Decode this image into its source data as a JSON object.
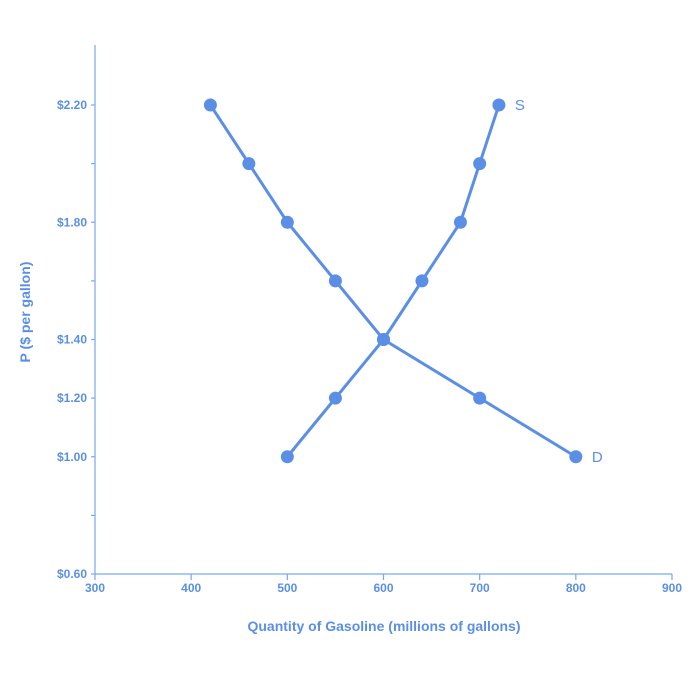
{
  "chart_data": {
    "type": "line",
    "xlabel": "Quantity of Gasoline (millions of gallons)",
    "ylabel": "P ($ per gallon)",
    "xlim": [
      300,
      900
    ],
    "ylim": [
      0.6,
      2.4
    ],
    "x_ticks": [
      300,
      400,
      500,
      600,
      700,
      800,
      900
    ],
    "x_tick_labels": [
      "300",
      "400",
      "500",
      "600",
      "700",
      "800",
      "900"
    ],
    "y_ticks": [
      0.6,
      0.8,
      1.0,
      1.2,
      1.4,
      1.6,
      1.8,
      2.0,
      2.2
    ],
    "y_tick_labels": [
      "$0.60",
      "",
      "$1.00",
      "$1.20",
      "$1.40",
      "",
      "$1.80",
      "",
      "$2.20"
    ],
    "grid": false,
    "line_color": "#5b8fe6",
    "series": [
      {
        "name": "D",
        "points": [
          {
            "x": 420,
            "y": 2.2
          },
          {
            "x": 460,
            "y": 2.0
          },
          {
            "x": 500,
            "y": 1.8
          },
          {
            "x": 550,
            "y": 1.6
          },
          {
            "x": 600,
            "y": 1.4
          },
          {
            "x": 700,
            "y": 1.2
          },
          {
            "x": 800,
            "y": 1.0
          }
        ]
      },
      {
        "name": "S",
        "points": [
          {
            "x": 500,
            "y": 1.0
          },
          {
            "x": 550,
            "y": 1.2
          },
          {
            "x": 600,
            "y": 1.4
          },
          {
            "x": 640,
            "y": 1.6
          },
          {
            "x": 680,
            "y": 1.8
          },
          {
            "x": 700,
            "y": 2.0
          },
          {
            "x": 720,
            "y": 2.2
          }
        ]
      }
    ]
  }
}
